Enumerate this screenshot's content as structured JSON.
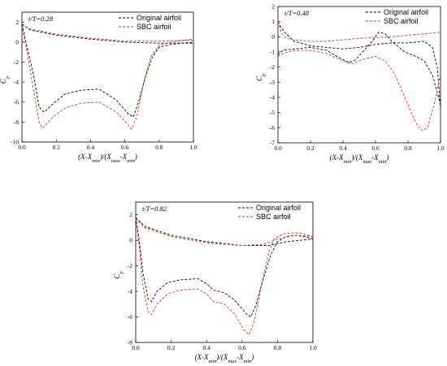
{
  "chart_data": [
    {
      "type": "line",
      "panel_note": "t/T=0.28",
      "xlabel_parts": [
        "(X-X",
        "min",
        ")/(X",
        "max",
        "-X",
        "min",
        ")"
      ],
      "ylabel": "C",
      "ylabel_sub": "p",
      "xlim": [
        0,
        1
      ],
      "ylim": [
        -10,
        3
      ],
      "xticks": [
        "0.0",
        "0.2",
        "0.4",
        "0.6",
        "0.8",
        "1.0"
      ],
      "yticks": [
        "2",
        "0",
        "-2",
        "-4",
        "-6",
        "-8",
        "-10"
      ],
      "xtick_values": [
        0,
        0.2,
        0.4,
        0.6,
        0.8,
        1.0
      ],
      "ytick_values": [
        2,
        0,
        -2,
        -4,
        -6,
        -8,
        -10
      ],
      "legend_position": "top-right",
      "series": [
        {
          "name": "Original airfoil",
          "color": "#000000",
          "upper": [
            [
              0,
              1.8
            ],
            [
              0.03,
              -0.5
            ],
            [
              0.07,
              -3.5
            ],
            [
              0.1,
              -6.5
            ],
            [
              0.13,
              -7.0
            ],
            [
              0.18,
              -6.2
            ],
            [
              0.25,
              -5.2
            ],
            [
              0.35,
              -4.8
            ],
            [
              0.45,
              -4.7
            ],
            [
              0.55,
              -5.8
            ],
            [
              0.62,
              -7.2
            ],
            [
              0.65,
              -7.5
            ],
            [
              0.68,
              -6.0
            ],
            [
              0.72,
              -3.5
            ],
            [
              0.76,
              -1.5
            ],
            [
              0.8,
              -0.5
            ],
            [
              0.88,
              -0.2
            ],
            [
              1.0,
              0
            ]
          ],
          "lower": [
            [
              0,
              1.8
            ],
            [
              0.05,
              1.2
            ],
            [
              0.2,
              0.7
            ],
            [
              0.4,
              0.3
            ],
            [
              0.6,
              0.0
            ],
            [
              0.8,
              -0.1
            ],
            [
              1.0,
              -0.1
            ]
          ]
        },
        {
          "name": "SBC airfoil",
          "color": "#e03020",
          "upper": [
            [
              0,
              1.7
            ],
            [
              0.03,
              -1.0
            ],
            [
              0.07,
              -5.0
            ],
            [
              0.1,
              -8.0
            ],
            [
              0.12,
              -8.6
            ],
            [
              0.18,
              -7.5
            ],
            [
              0.25,
              -6.6
            ],
            [
              0.35,
              -6.1
            ],
            [
              0.45,
              -6.0
            ],
            [
              0.55,
              -7.0
            ],
            [
              0.62,
              -8.3
            ],
            [
              0.64,
              -8.7
            ],
            [
              0.67,
              -7.5
            ],
            [
              0.71,
              -4.0
            ],
            [
              0.75,
              -1.5
            ],
            [
              0.8,
              -0.3
            ],
            [
              0.9,
              0.1
            ],
            [
              1.0,
              0.3
            ]
          ],
          "lower": [
            [
              0,
              1.7
            ],
            [
              0.05,
              1.3
            ],
            [
              0.2,
              0.8
            ],
            [
              0.4,
              0.4
            ],
            [
              0.6,
              0.1
            ],
            [
              0.8,
              0.1
            ],
            [
              1.0,
              0.2
            ]
          ]
        }
      ]
    },
    {
      "type": "line",
      "panel_note": "t/T=0.48",
      "xlabel_parts": [
        "(X-X",
        "min",
        ")/(X",
        "max",
        "-X",
        "min",
        ")"
      ],
      "ylabel": "C",
      "ylabel_sub": "p",
      "xlim": [
        0,
        1
      ],
      "ylim": [
        -7,
        2
      ],
      "xticks": [
        "0.0",
        "0.2",
        "0.4",
        "0.6",
        "0.8",
        "1.0"
      ],
      "yticks": [
        "2",
        "1",
        "0",
        "-1",
        "-2",
        "-3",
        "-4",
        "-5",
        "-6",
        "-7"
      ],
      "xtick_values": [
        0,
        0.2,
        0.4,
        0.6,
        0.8,
        1.0
      ],
      "ytick_values": [
        2,
        1,
        0,
        -1,
        -2,
        -3,
        -4,
        -5,
        -6,
        -7
      ],
      "legend_position": "top-right",
      "series": [
        {
          "name": "Original airfoil",
          "color": "#000000",
          "upper": [
            [
              0,
              1.0
            ],
            [
              0.02,
              0.6
            ],
            [
              0.05,
              0.2
            ],
            [
              0.1,
              -0.3
            ],
            [
              0.2,
              -0.6
            ],
            [
              0.3,
              -0.7
            ],
            [
              0.4,
              -0.8
            ],
            [
              0.5,
              -0.7
            ],
            [
              0.6,
              -0.5
            ],
            [
              0.7,
              -0.4
            ],
            [
              0.8,
              -0.4
            ],
            [
              0.9,
              -0.3
            ],
            [
              0.95,
              -0.7
            ],
            [
              0.98,
              -2.0
            ],
            [
              1.0,
              -4.7
            ]
          ],
          "lower": [
            [
              0,
              -1.2
            ],
            [
              0.03,
              -0.9
            ],
            [
              0.1,
              -0.8
            ],
            [
              0.2,
              -0.7
            ],
            [
              0.3,
              -0.9
            ],
            [
              0.38,
              -1.4
            ],
            [
              0.44,
              -1.7
            ],
            [
              0.48,
              -1.5
            ],
            [
              0.53,
              -0.9
            ],
            [
              0.58,
              -0.3
            ],
            [
              0.62,
              0.3
            ],
            [
              0.66,
              0.2
            ],
            [
              0.7,
              -0.3
            ],
            [
              0.78,
              -1.0
            ],
            [
              0.85,
              -1.3
            ],
            [
              0.9,
              -1.6
            ],
            [
              0.95,
              -2.5
            ],
            [
              1.0,
              -4.5
            ]
          ]
        },
        {
          "name": "SBC airfoil",
          "color": "#e03020",
          "upper": [
            [
              0,
              1.0
            ],
            [
              0.02,
              0.3
            ],
            [
              0.05,
              -0.1
            ],
            [
              0.1,
              -0.2
            ],
            [
              0.2,
              -0.3
            ],
            [
              0.3,
              -0.3
            ],
            [
              0.4,
              -0.2
            ],
            [
              0.5,
              -0.1
            ],
            [
              0.6,
              -0.05
            ],
            [
              0.7,
              0.0
            ],
            [
              0.8,
              0.1
            ],
            [
              0.9,
              0.2
            ],
            [
              1.0,
              0.3
            ]
          ],
          "lower": [
            [
              0,
              -1.3
            ],
            [
              0.03,
              -1.1
            ],
            [
              0.1,
              -0.9
            ],
            [
              0.2,
              -0.9
            ],
            [
              0.3,
              -1.1
            ],
            [
              0.38,
              -1.5
            ],
            [
              0.45,
              -1.8
            ],
            [
              0.52,
              -1.5
            ],
            [
              0.6,
              -1.3
            ],
            [
              0.66,
              -1.6
            ],
            [
              0.72,
              -2.5
            ],
            [
              0.78,
              -4.0
            ],
            [
              0.82,
              -5.0
            ],
            [
              0.86,
              -5.9
            ],
            [
              0.89,
              -6.2
            ],
            [
              0.92,
              -6.0
            ],
            [
              0.96,
              -4.5
            ],
            [
              1.0,
              -2.5
            ]
          ]
        }
      ]
    },
    {
      "type": "line",
      "panel_note": "t/T=0.82",
      "xlabel_parts": [
        "(X-X",
        "min",
        ")/(X",
        "max",
        "-X",
        "min",
        ")"
      ],
      "ylabel": "C",
      "ylabel_sub": "p",
      "xlim": [
        0,
        1
      ],
      "ylim": [
        -8,
        3
      ],
      "xticks": [
        "0.0",
        "0.2",
        "0.4",
        "0.6",
        "0.8",
        "1.0"
      ],
      "yticks": [
        "2",
        "0",
        "-2",
        "-4",
        "-6",
        "-8"
      ],
      "xtick_values": [
        0,
        0.2,
        0.4,
        0.6,
        0.8,
        1.0
      ],
      "ytick_values": [
        2,
        0,
        -2,
        -4,
        -6,
        -8
      ],
      "legend_position": "top-right",
      "series": [
        {
          "name": "Original airfoil",
          "color": "#000000",
          "upper": [
            [
              0,
              1.8
            ],
            [
              0.02,
              0.0
            ],
            [
              0.04,
              -2.5
            ],
            [
              0.07,
              -4.6
            ],
            [
              0.09,
              -4.8
            ],
            [
              0.12,
              -4.0
            ],
            [
              0.18,
              -3.3
            ],
            [
              0.25,
              -3.1
            ],
            [
              0.35,
              -3.0
            ],
            [
              0.4,
              -3.4
            ],
            [
              0.44,
              -3.9
            ],
            [
              0.5,
              -4.1
            ],
            [
              0.56,
              -4.7
            ],
            [
              0.62,
              -5.7
            ],
            [
              0.65,
              -6.0
            ],
            [
              0.68,
              -5.0
            ],
            [
              0.72,
              -3.0
            ],
            [
              0.76,
              -1.2
            ],
            [
              0.8,
              -0.1
            ],
            [
              0.85,
              0.3
            ],
            [
              0.9,
              0.4
            ],
            [
              0.95,
              0.3
            ],
            [
              1.0,
              0.1
            ]
          ],
          "lower": [
            [
              0,
              1.8
            ],
            [
              0.05,
              1.1
            ],
            [
              0.2,
              0.4
            ],
            [
              0.4,
              -0.1
            ],
            [
              0.6,
              -0.4
            ],
            [
              0.75,
              -0.4
            ],
            [
              0.85,
              -0.1
            ],
            [
              1.0,
              0.1
            ]
          ]
        },
        {
          "name": "SBC airfoil",
          "color": "#e03020",
          "upper": [
            [
              0,
              1.7
            ],
            [
              0.02,
              -0.5
            ],
            [
              0.04,
              -3.5
            ],
            [
              0.07,
              -5.6
            ],
            [
              0.09,
              -5.8
            ],
            [
              0.12,
              -5.0
            ],
            [
              0.18,
              -4.2
            ],
            [
              0.25,
              -3.9
            ],
            [
              0.35,
              -3.8
            ],
            [
              0.4,
              -4.2
            ],
            [
              0.44,
              -4.8
            ],
            [
              0.5,
              -5.0
            ],
            [
              0.56,
              -5.8
            ],
            [
              0.61,
              -7.0
            ],
            [
              0.64,
              -7.4
            ],
            [
              0.67,
              -6.3
            ],
            [
              0.71,
              -3.5
            ],
            [
              0.75,
              -1.0
            ],
            [
              0.78,
              0.1
            ],
            [
              0.83,
              0.5
            ],
            [
              0.9,
              0.6
            ],
            [
              0.95,
              0.5
            ],
            [
              1.0,
              0.3
            ]
          ],
          "lower": [
            [
              0,
              1.7
            ],
            [
              0.05,
              1.0
            ],
            [
              0.2,
              0.3
            ],
            [
              0.4,
              -0.2
            ],
            [
              0.6,
              -0.4
            ],
            [
              0.72,
              -0.3
            ],
            [
              0.8,
              0.1
            ],
            [
              0.9,
              0.4
            ],
            [
              1.0,
              0.3
            ]
          ]
        }
      ]
    }
  ]
}
